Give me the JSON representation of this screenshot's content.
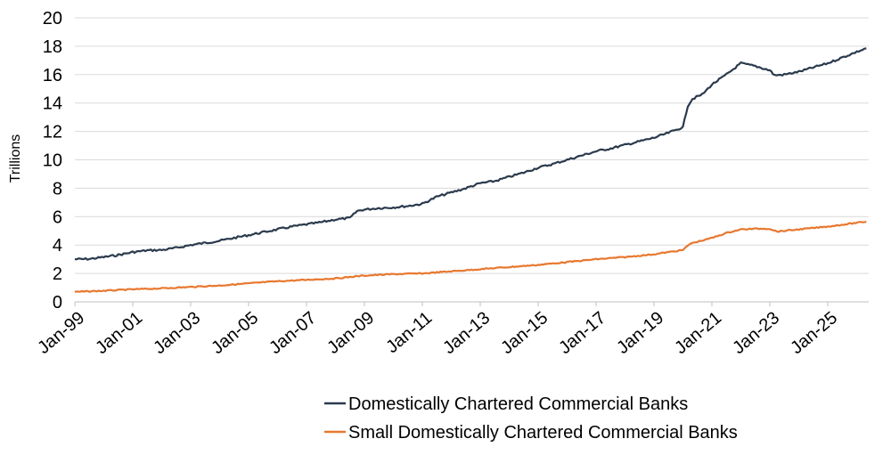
{
  "chart_data": {
    "type": "line",
    "title": "",
    "xlabel": "",
    "ylabel": "Trillions",
    "ylim": [
      0,
      20
    ],
    "yticks": [
      0,
      2,
      4,
      6,
      8,
      10,
      12,
      14,
      16,
      18,
      20
    ],
    "xlim": [
      "1999-01",
      "2026-06"
    ],
    "xticks": [
      "Jan-99",
      "Jan-01",
      "Jan-03",
      "Jan-05",
      "Jan-07",
      "Jan-09",
      "Jan-11",
      "Jan-13",
      "Jan-15",
      "Jan-17",
      "Jan-19",
      "Jan-21",
      "Jan-23",
      "Jan-25"
    ],
    "grid": true,
    "legend": "bottom-right",
    "series": [
      {
        "name": "Domestically Chartered Commercial Banks",
        "color": "#2b3a4d",
        "points": [
          [
            "1999-01",
            3.0
          ],
          [
            "1999-07",
            3.02
          ],
          [
            "2000-01",
            3.15
          ],
          [
            "2000-07",
            3.3
          ],
          [
            "2001-01",
            3.5
          ],
          [
            "2001-07",
            3.62
          ],
          [
            "2002-01",
            3.65
          ],
          [
            "2002-07",
            3.8
          ],
          [
            "2003-01",
            4.0
          ],
          [
            "2003-07",
            4.15
          ],
          [
            "2004-01",
            4.3
          ],
          [
            "2004-07",
            4.5
          ],
          [
            "2005-01",
            4.7
          ],
          [
            "2005-07",
            4.9
          ],
          [
            "2006-01",
            5.1
          ],
          [
            "2006-07",
            5.3
          ],
          [
            "2007-01",
            5.45
          ],
          [
            "2007-07",
            5.6
          ],
          [
            "2008-01",
            5.8
          ],
          [
            "2008-07",
            5.9
          ],
          [
            "2008-10",
            6.4
          ],
          [
            "2009-01",
            6.5
          ],
          [
            "2009-07",
            6.6
          ],
          [
            "2010-01",
            6.65
          ],
          [
            "2010-07",
            6.75
          ],
          [
            "2011-01",
            6.9
          ],
          [
            "2011-07",
            7.4
          ],
          [
            "2012-01",
            7.7
          ],
          [
            "2012-07",
            8.0
          ],
          [
            "2013-01",
            8.35
          ],
          [
            "2013-07",
            8.5
          ],
          [
            "2014-01",
            8.8
          ],
          [
            "2014-07",
            9.1
          ],
          [
            "2015-01",
            9.45
          ],
          [
            "2015-07",
            9.7
          ],
          [
            "2016-01",
            10.0
          ],
          [
            "2016-07",
            10.3
          ],
          [
            "2017-01",
            10.6
          ],
          [
            "2017-07",
            10.8
          ],
          [
            "2018-01",
            11.05
          ],
          [
            "2018-07",
            11.3
          ],
          [
            "2019-01",
            11.55
          ],
          [
            "2019-07",
            11.9
          ],
          [
            "2020-01",
            12.3
          ],
          [
            "2020-03",
            13.8
          ],
          [
            "2020-05",
            14.3
          ],
          [
            "2020-09",
            14.6
          ],
          [
            "2021-01",
            15.3
          ],
          [
            "2021-07",
            16.0
          ],
          [
            "2022-01",
            16.8
          ],
          [
            "2022-07",
            16.6
          ],
          [
            "2023-01",
            16.3
          ],
          [
            "2023-03",
            15.95
          ],
          [
            "2023-07",
            16.0
          ],
          [
            "2024-01",
            16.2
          ],
          [
            "2024-07",
            16.5
          ],
          [
            "2025-01",
            16.8
          ],
          [
            "2025-07",
            17.2
          ],
          [
            "2026-01",
            17.6
          ],
          [
            "2026-05",
            17.85
          ]
        ]
      },
      {
        "name": "Small Domestically Chartered Commercial Banks",
        "color": "#e8782f",
        "points": [
          [
            "1999-01",
            0.7
          ],
          [
            "2000-01",
            0.78
          ],
          [
            "2001-01",
            0.88
          ],
          [
            "2002-01",
            0.95
          ],
          [
            "2003-01",
            1.05
          ],
          [
            "2004-01",
            1.15
          ],
          [
            "2005-01",
            1.3
          ],
          [
            "2006-01",
            1.45
          ],
          [
            "2007-01",
            1.55
          ],
          [
            "2008-01",
            1.65
          ],
          [
            "2009-01",
            1.85
          ],
          [
            "2010-01",
            1.95
          ],
          [
            "2011-01",
            2.0
          ],
          [
            "2012-01",
            2.15
          ],
          [
            "2013-01",
            2.3
          ],
          [
            "2014-01",
            2.45
          ],
          [
            "2015-01",
            2.6
          ],
          [
            "2016-01",
            2.8
          ],
          [
            "2017-01",
            3.0
          ],
          [
            "2018-01",
            3.15
          ],
          [
            "2019-01",
            3.35
          ],
          [
            "2020-01",
            3.65
          ],
          [
            "2020-04",
            4.1
          ],
          [
            "2021-01",
            4.5
          ],
          [
            "2021-07",
            4.85
          ],
          [
            "2022-01",
            5.1
          ],
          [
            "2022-07",
            5.15
          ],
          [
            "2023-01",
            5.15
          ],
          [
            "2023-04",
            4.95
          ],
          [
            "2024-01",
            5.1
          ],
          [
            "2025-01",
            5.3
          ],
          [
            "2026-05",
            5.65
          ]
        ]
      }
    ]
  }
}
